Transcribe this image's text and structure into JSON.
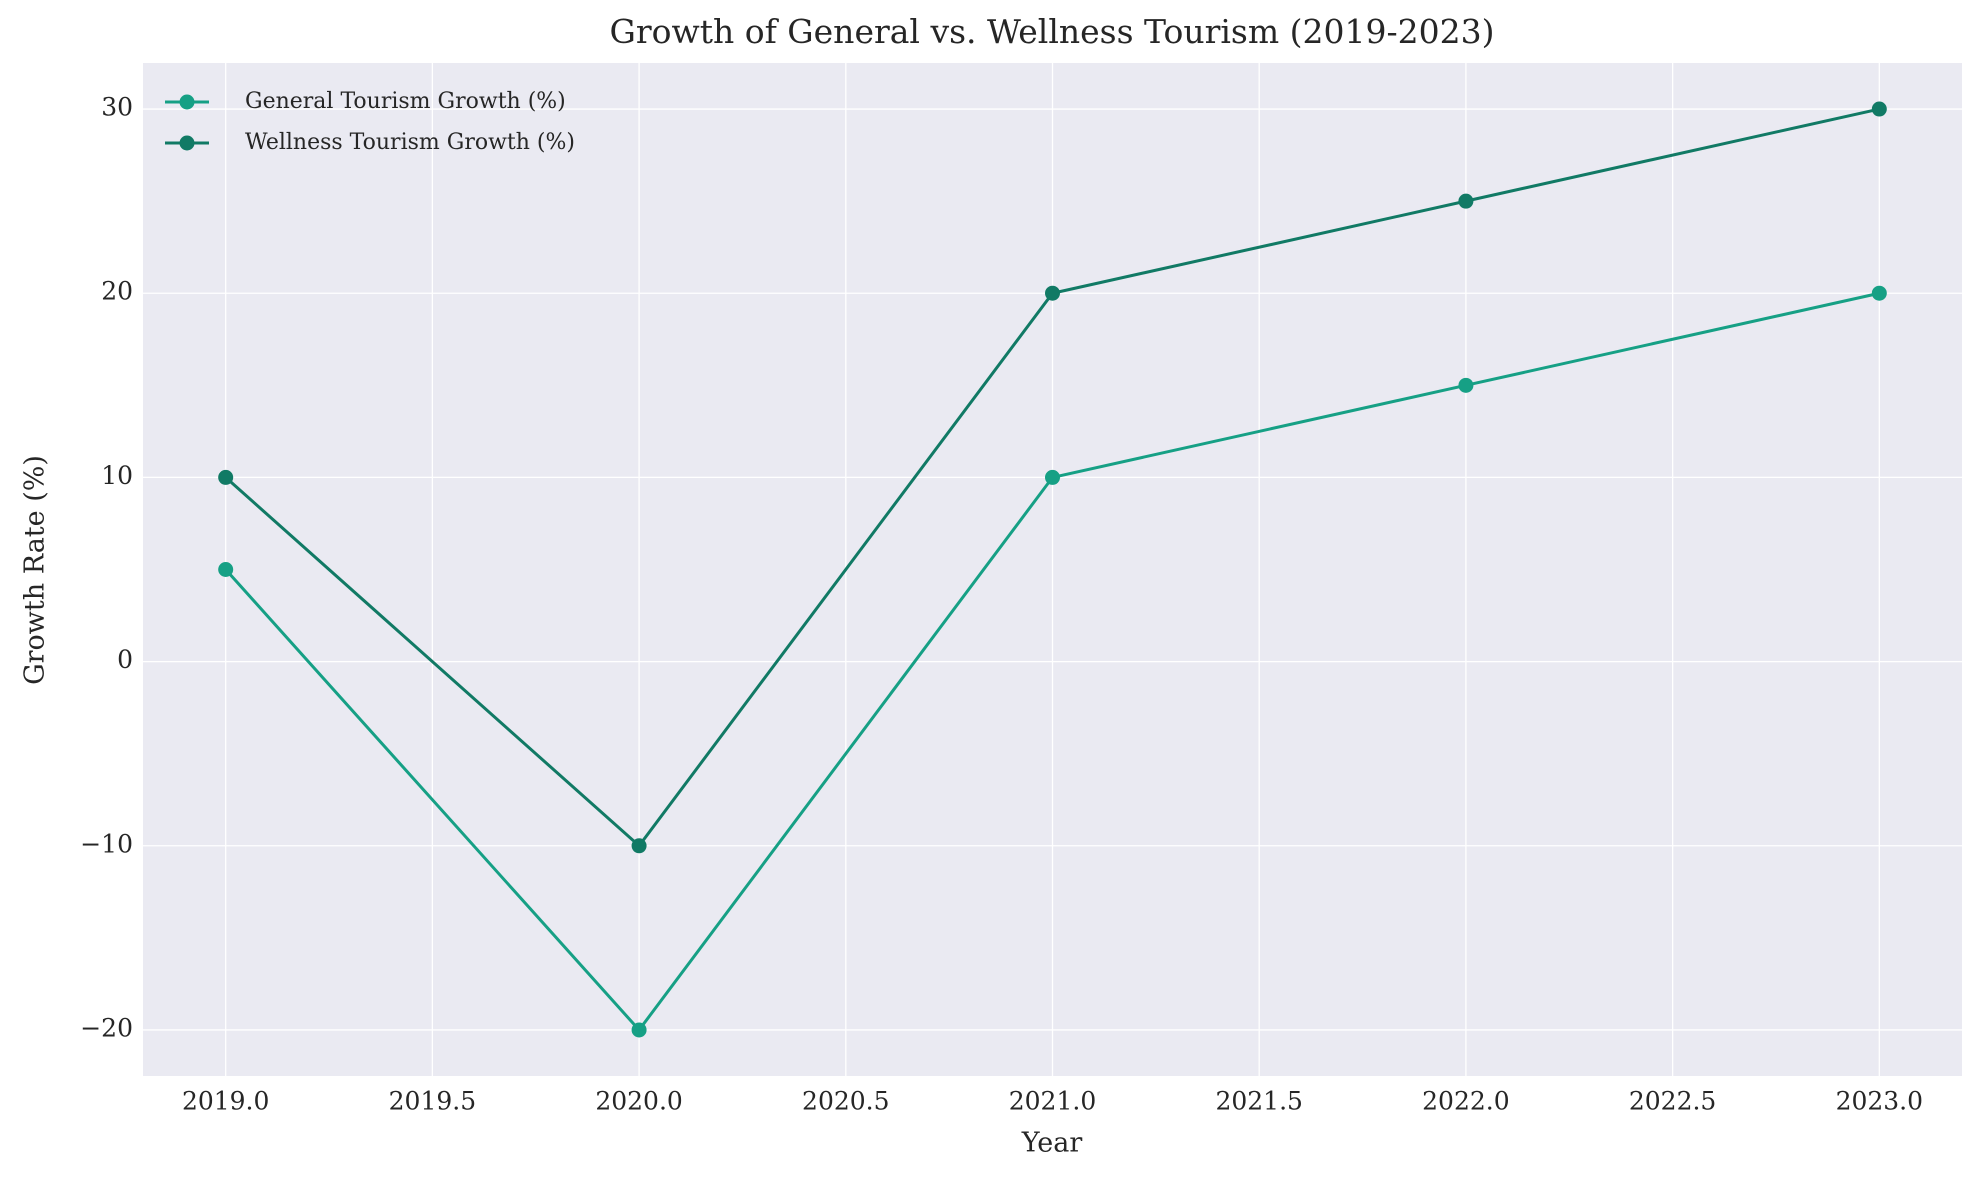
{
  "chart_data": {
    "type": "line",
    "title": "Growth of General vs. Wellness Tourism (2019-2023)",
    "x_label": "Year",
    "y_label": "Growth Rate (%)",
    "x": [
      2019,
      2020,
      2021,
      2022,
      2023
    ],
    "series": [
      {
        "name": "General Tourism Growth (%)",
        "color": "#16a085",
        "values": [
          5,
          -20,
          10,
          15,
          20
        ]
      },
      {
        "name": "Wellness Tourism Growth (%)",
        "color": "#117a65",
        "values": [
          10,
          -10,
          20,
          25,
          30
        ]
      }
    ],
    "xlim": [
      2018.8,
      2023.2
    ],
    "xticks": [
      {
        "value": 2019,
        "label": "2019.0"
      },
      {
        "value": 2019.5,
        "label": "2019.5"
      },
      {
        "value": 2020,
        "label": "2020.0"
      },
      {
        "value": 2020.5,
        "label": "2020.5"
      },
      {
        "value": 2021,
        "label": "2021.0"
      },
      {
        "value": 2021.5,
        "label": "2021.5"
      },
      {
        "value": 2022,
        "label": "2022.0"
      },
      {
        "value": 2022.5,
        "label": "2022.5"
      },
      {
        "value": 2023,
        "label": "2023.0"
      }
    ],
    "ylim": [
      -22.5,
      32.5
    ],
    "yticks": [
      {
        "value": -20,
        "label": "−20"
      },
      {
        "value": -10,
        "label": "−10"
      },
      0,
      10,
      20,
      30
    ],
    "grid": true,
    "legend": "upper-left"
  }
}
